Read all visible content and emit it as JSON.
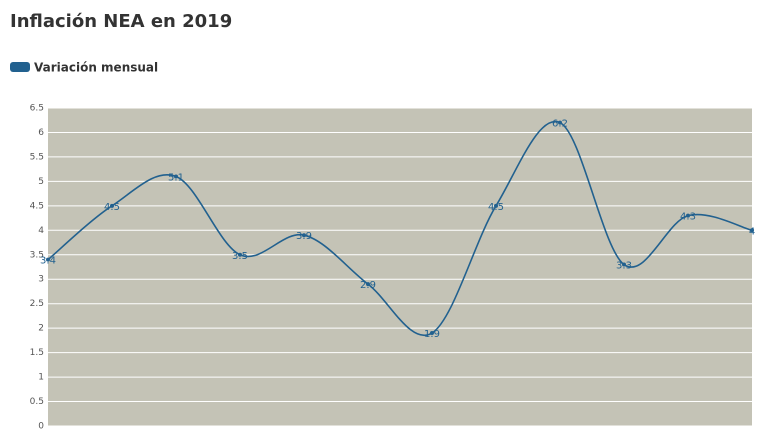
{
  "chart_data": {
    "type": "line",
    "title": "Inflación NEA en 2019",
    "series": [
      {
        "name": "Variación mensual",
        "color": "#22618f",
        "values": [
          3.4,
          4.5,
          5.1,
          3.5,
          3.9,
          2.9,
          1.9,
          4.5,
          6.2,
          3.3,
          4.3,
          4
        ]
      }
    ],
    "ylim": [
      0,
      6.5
    ],
    "yticks": [
      0,
      0.5,
      1,
      1.5,
      2,
      2.5,
      3,
      3.5,
      4,
      4.5,
      5,
      5.5,
      6,
      6.5
    ],
    "grid": true,
    "legend": "top-left",
    "background": "#c4c3b6"
  }
}
